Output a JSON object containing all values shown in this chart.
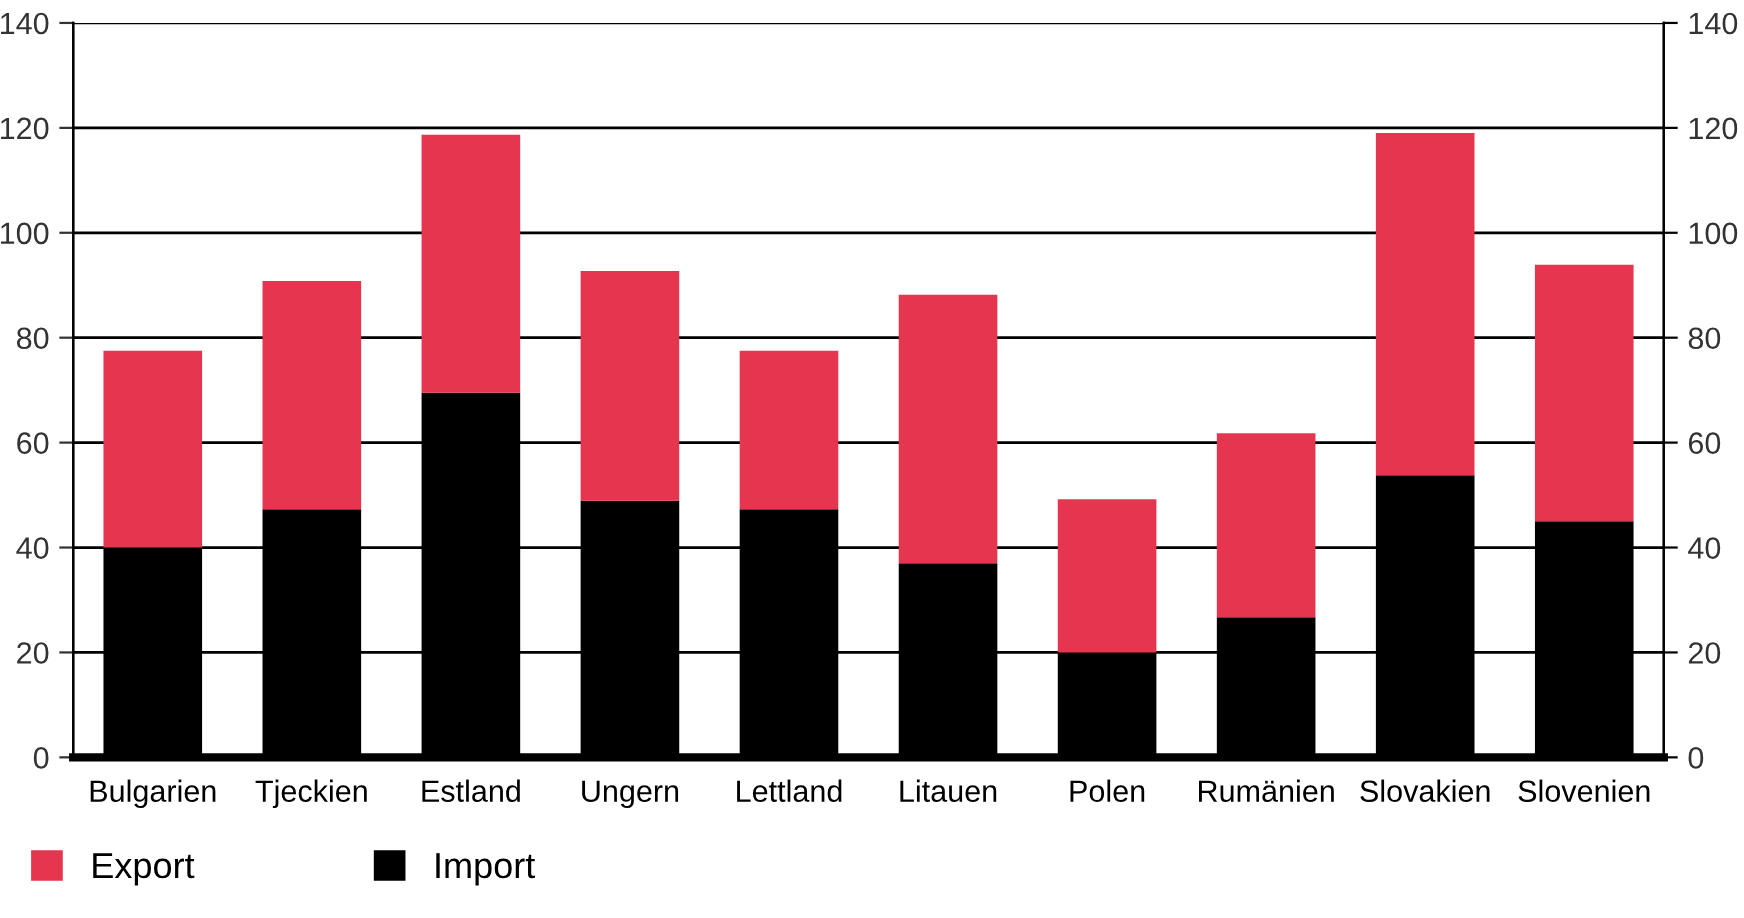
{
  "chart_data": {
    "type": "bar",
    "stacked": true,
    "categories": [
      "Bulgarien",
      "Tjeckien",
      "Estland",
      "Ungern",
      "Lettland",
      "Litauen",
      "Polen",
      "Rumänien",
      "Slovakien",
      "Slovenien"
    ],
    "series": [
      {
        "name": "Import",
        "color": "#000000",
        "values": [
          40,
          47.3,
          69.5,
          48.9,
          47.3,
          37,
          20,
          26.7,
          53.8,
          45
        ]
      },
      {
        "name": "Export",
        "color": "#e5354f",
        "values": [
          37.5,
          43.5,
          49.2,
          43.8,
          30.2,
          51.2,
          29.2,
          35.1,
          65.2,
          48.9
        ]
      }
    ],
    "ylim": [
      0,
      140
    ],
    "yticks": [
      0,
      20,
      40,
      60,
      80,
      100,
      120,
      140
    ],
    "y2lim": [
      0,
      140
    ],
    "y2ticks": [
      0,
      20,
      40,
      60,
      80,
      100,
      120,
      140
    ],
    "grid": "y",
    "legend": "bottom left"
  }
}
